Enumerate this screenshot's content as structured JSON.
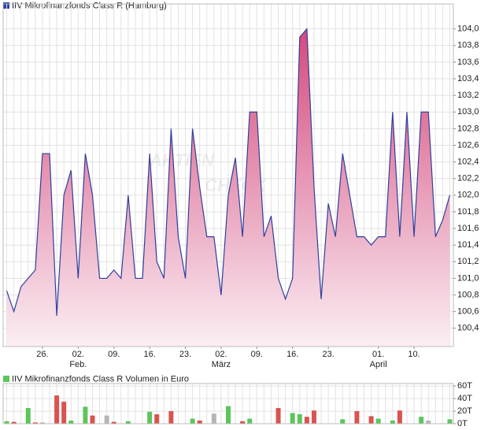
{
  "chart_data": [
    {
      "type": "area",
      "title": "IIV Mikrofinanzfonds Class R (Hamburg)",
      "color": "#2e3f9e",
      "fill_top": "#d44a7c",
      "fill_bottom": "#fbeef3",
      "watermark": [
        "AKTIEN",
        "CHECK"
      ],
      "categories": [
        null,
        null,
        null,
        null,
        null,
        "26.",
        null,
        null,
        null,
        null,
        "02.",
        null,
        null,
        null,
        null,
        "09.",
        null,
        null,
        null,
        null,
        "16.",
        null,
        null,
        null,
        null,
        "23.",
        null,
        null,
        null,
        null,
        "02.",
        null,
        null,
        null,
        null,
        "09.",
        null,
        null,
        null,
        null,
        "16.",
        null,
        null,
        null,
        null,
        "23.",
        null,
        null,
        null,
        null,
        null,
        null,
        "01.",
        null,
        null,
        null,
        null,
        "10.",
        null,
        null,
        null,
        null,
        null
      ],
      "months": [
        null,
        null,
        null,
        null,
        null,
        null,
        null,
        null,
        null,
        null,
        "Feb.",
        null,
        null,
        null,
        null,
        null,
        null,
        null,
        null,
        null,
        null,
        null,
        null,
        null,
        null,
        null,
        null,
        null,
        null,
        null,
        "März",
        null,
        null,
        null,
        null,
        null,
        null,
        null,
        null,
        null,
        null,
        null,
        null,
        null,
        null,
        null,
        null,
        null,
        null,
        null,
        null,
        null,
        "April",
        null,
        null,
        null,
        null,
        null,
        null,
        null,
        null,
        null,
        null
      ],
      "values": [
        100.85,
        100.6,
        100.9,
        101.0,
        101.1,
        102.5,
        102.5,
        100.55,
        102.0,
        102.3,
        101.0,
        102.5,
        102.0,
        101.0,
        101.0,
        101.1,
        101.0,
        102.0,
        101.0,
        101.0,
        102.5,
        101.2,
        101.0,
        102.8,
        101.5,
        101.0,
        102.8,
        102.1,
        101.5,
        101.5,
        100.8,
        102.0,
        102.45,
        101.5,
        103.0,
        103.0,
        101.5,
        101.75,
        101.0,
        100.75,
        101.0,
        103.9,
        104.0,
        102.1,
        100.75,
        101.9,
        101.5,
        102.5,
        102.0,
        101.5,
        101.5,
        101.4,
        101.5,
        101.5,
        103.0,
        101.5,
        103.0,
        101.5,
        103.0,
        103.0,
        101.5,
        101.7,
        102.0
      ],
      "ylim": [
        100.18,
        104.3
      ],
      "yticks": [
        {
          "value": 100.4,
          "label": "100,4"
        },
        {
          "value": 100.6,
          "label": "100,6"
        },
        {
          "value": 100.8,
          "label": "100,8"
        },
        {
          "value": 101.0,
          "label": "101,0"
        },
        {
          "value": 101.2,
          "label": "101,2"
        },
        {
          "value": 101.4,
          "label": "101,4"
        },
        {
          "value": 101.6,
          "label": "101,6"
        },
        {
          "value": 101.8,
          "label": "101,8"
        },
        {
          "value": 102.0,
          "label": "102,0"
        },
        {
          "value": 102.2,
          "label": "102,2"
        },
        {
          "value": 102.4,
          "label": "102,4"
        },
        {
          "value": 102.6,
          "label": "102,6"
        },
        {
          "value": 102.8,
          "label": "102,8"
        },
        {
          "value": 103.0,
          "label": "103,0"
        },
        {
          "value": 103.2,
          "label": "103,2"
        },
        {
          "value": 103.4,
          "label": "103,4"
        },
        {
          "value": 103.6,
          "label": "103,6"
        },
        {
          "value": 103.8,
          "label": "103,8"
        },
        {
          "value": 104.0,
          "label": "104,0"
        }
      ],
      "grid": true
    },
    {
      "type": "bar",
      "title": "IIV Mikrofinanzfonds Class R Volumen in Euro",
      "legend_color": "#5cc55c",
      "values": [
        4,
        3,
        null,
        25,
        2,
        2,
        null,
        45,
        35,
        5,
        null,
        27,
        13,
        null,
        13,
        3,
        null,
        4,
        null,
        null,
        19,
        15,
        null,
        20,
        null,
        null,
        8,
        5,
        null,
        16,
        null,
        28,
        null,
        4,
        8,
        null,
        null,
        null,
        25,
        null,
        17,
        15,
        11,
        21,
        null,
        null,
        null,
        7,
        null,
        20,
        null,
        12,
        8,
        null,
        5,
        21,
        null,
        null,
        11,
        5,
        null,
        null,
        7
      ],
      "colors": [
        "#5cc55c",
        "#d9534f",
        null,
        "#5cc55c",
        "#d9534f",
        "#b5b5b5",
        null,
        "#d9534f",
        "#d9534f",
        "#5cc55c",
        null,
        "#5cc55c",
        "#d9534f",
        null,
        "#b5b5b5",
        "#d9534f",
        null,
        "#5cc55c",
        null,
        null,
        "#5cc55c",
        "#d9534f",
        null,
        "#d9534f",
        null,
        null,
        "#5cc55c",
        "#d9534f",
        null,
        "#b5b5b5",
        null,
        "#5cc55c",
        null,
        "#d9534f",
        "#5cc55c",
        null,
        null,
        null,
        "#d9534f",
        null,
        "#5cc55c",
        "#5cc55c",
        "#d9534f",
        "#d9534f",
        null,
        null,
        null,
        "#5cc55c",
        null,
        "#d9534f",
        null,
        "#d9534f",
        "#5cc55c",
        null,
        "#5cc55c",
        "#d9534f",
        null,
        null,
        "#5cc55c",
        "#b5b5b5",
        null,
        null,
        "#5cc55c"
      ],
      "ylim": [
        0,
        64
      ],
      "yticks": [
        {
          "value": 0,
          "label": "0T"
        },
        {
          "value": 20,
          "label": "20T"
        },
        {
          "value": 40,
          "label": "40T"
        },
        {
          "value": 60,
          "label": "60T"
        }
      ],
      "grid": true
    }
  ]
}
